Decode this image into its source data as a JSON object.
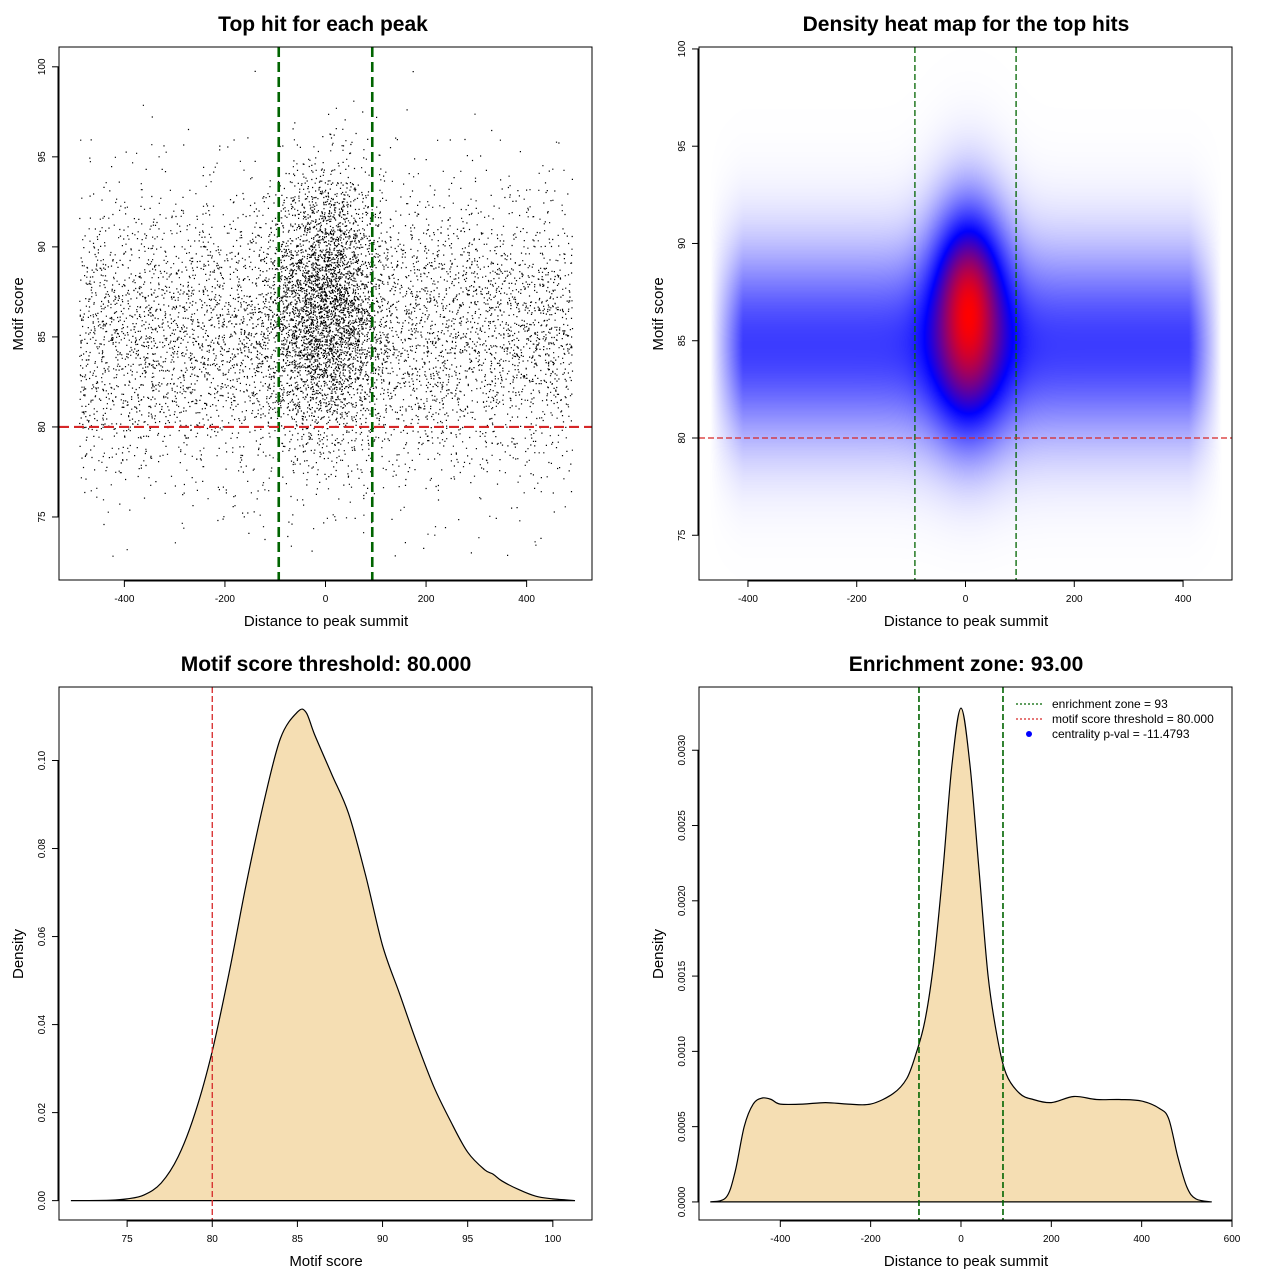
{
  "colors": {
    "points": "#000000",
    "zone_line": "#006400",
    "threshold_line": "#d62728",
    "density_fill": "#f5deb3",
    "heat_low": "#ffffff",
    "heat_mid": "#0000ff",
    "heat_high": "#ff0000"
  },
  "chart_data": [
    {
      "id": "scatter",
      "type": "scatter",
      "title": "Top hit for each peak",
      "xlabel": "Distance to peak summit",
      "ylabel": "Motif score",
      "xlim": [
        -530,
        530
      ],
      "ylim": [
        71.5,
        101.1
      ],
      "xticks": [
        -400,
        -200,
        0,
        200,
        400
      ],
      "xtick_labels": [
        "-400",
        "-200",
        "0",
        "200",
        "400"
      ],
      "yticks": [
        75,
        80,
        85,
        90,
        95,
        100
      ],
      "ytick_labels": [
        "75",
        "80",
        "85",
        "90",
        "95",
        "100"
      ],
      "vlines": [
        -93,
        93
      ],
      "hline": 80,
      "point_count": 9000,
      "background_x_range": [
        -490,
        490
      ],
      "background_score_mean": 85,
      "background_score_sd": 3.9,
      "central_fraction": 0.34,
      "central_x_sd": 55,
      "central_score_mean": 87,
      "central_score_sd": 3.6
    },
    {
      "id": "heatmap",
      "type": "heatmap",
      "title": "Density heat map for the top hits",
      "xlabel": "Distance to peak summit",
      "ylabel": "Motif score",
      "xlim": [
        -490,
        490
      ],
      "ylim": [
        72.7,
        100.1
      ],
      "xticks": [
        -400,
        -200,
        0,
        200,
        400
      ],
      "xtick_labels": [
        "-400",
        "-200",
        "0",
        "200",
        "400"
      ],
      "yticks": [
        75,
        80,
        85,
        90,
        95,
        100
      ],
      "ytick_labels": [
        "75",
        "80",
        "85",
        "90",
        "95",
        "100"
      ],
      "vlines": [
        -93,
        93
      ],
      "hline": 80,
      "peak_center": [
        5,
        86.3
      ],
      "peak_sd": [
        48,
        3.7
      ],
      "band_score_mean": 84.8,
      "band_score_sd": 3.5
    },
    {
      "id": "score-density",
      "type": "area",
      "title": "Motif score threshold: 80.000",
      "xlabel": "Motif score",
      "ylabel": "Density",
      "xlim": [
        71,
        102.3
      ],
      "ylim": [
        -0.0044,
        0.1167
      ],
      "xticks": [
        75,
        80,
        85,
        90,
        95,
        100
      ],
      "xtick_labels": [
        "75",
        "80",
        "85",
        "90",
        "95",
        "100"
      ],
      "yticks": [
        0,
        0.02,
        0.04,
        0.06,
        0.08,
        0.1
      ],
      "ytick_labels": [
        "0.00",
        "0.02",
        "0.04",
        "0.06",
        "0.08",
        "0.10"
      ],
      "vline": 80,
      "x": [
        71.7,
        74,
        75,
        76,
        77,
        78,
        79,
        80,
        81,
        82,
        83,
        84,
        85,
        85.5,
        86,
        87,
        88,
        89,
        90,
        91,
        92,
        93,
        94,
        95,
        96,
        96.5,
        97,
        98,
        99,
        100,
        101.3
      ],
      "y": [
        0,
        0.0001,
        0.0004,
        0.0013,
        0.004,
        0.01,
        0.02,
        0.034,
        0.052,
        0.072,
        0.09,
        0.105,
        0.111,
        0.111,
        0.106,
        0.097,
        0.088,
        0.074,
        0.058,
        0.047,
        0.036,
        0.026,
        0.018,
        0.011,
        0.007,
        0.006,
        0.0045,
        0.0025,
        0.001,
        0.0004,
        0
      ]
    },
    {
      "id": "distance-density",
      "type": "area",
      "title": "Enrichment zone: 93.00",
      "xlabel": "Distance to peak summit",
      "ylabel": "Density",
      "xlim": [
        -580,
        600
      ],
      "ylim": [
        -0.00012,
        0.00342
      ],
      "xticks": [
        -400,
        -200,
        0,
        200,
        400,
        600
      ],
      "xtick_labels": [
        "-400",
        "-200",
        "0",
        "200",
        "400",
        "600"
      ],
      "yticks": [
        0,
        0.0005,
        0.001,
        0.0015,
        0.002,
        0.0025,
        0.003
      ],
      "ytick_labels": [
        "0.0000",
        "0.0005",
        "0.0010",
        "0.0015",
        "0.0020",
        "0.0025",
        "0.0030"
      ],
      "vlines": [
        -93,
        93
      ],
      "x": [
        -555,
        -520,
        -500,
        -480,
        -460,
        -440,
        -420,
        -400,
        -350,
        -300,
        -250,
        -200,
        -150,
        -120,
        -100,
        -80,
        -60,
        -40,
        -20,
        0,
        20,
        40,
        60,
        80,
        100,
        130,
        160,
        200,
        250,
        300,
        350,
        400,
        440,
        460,
        480,
        500,
        520,
        555
      ],
      "y": [
        0,
        3e-05,
        0.0002,
        0.0005,
        0.00065,
        0.00069,
        0.00068,
        0.00065,
        0.00065,
        0.00066,
        0.00065,
        0.00065,
        0.00072,
        0.00082,
        0.00098,
        0.0012,
        0.0016,
        0.0022,
        0.0029,
        0.00328,
        0.0029,
        0.0022,
        0.0015,
        0.0011,
        0.00085,
        0.00072,
        0.00068,
        0.00066,
        0.0007,
        0.00068,
        0.00068,
        0.00067,
        0.00062,
        0.00055,
        0.0003,
        0.0001,
        2e-05,
        0
      ],
      "legend": [
        {
          "label": "enrichment zone = 93",
          "color": "#006400",
          "kind": "line"
        },
        {
          "label": "motif score threshold = 80.000",
          "color": "#d62728",
          "kind": "line"
        },
        {
          "label": "centrality p-val = -11.4793",
          "color": "#0000ff",
          "kind": "dot"
        }
      ]
    }
  ]
}
